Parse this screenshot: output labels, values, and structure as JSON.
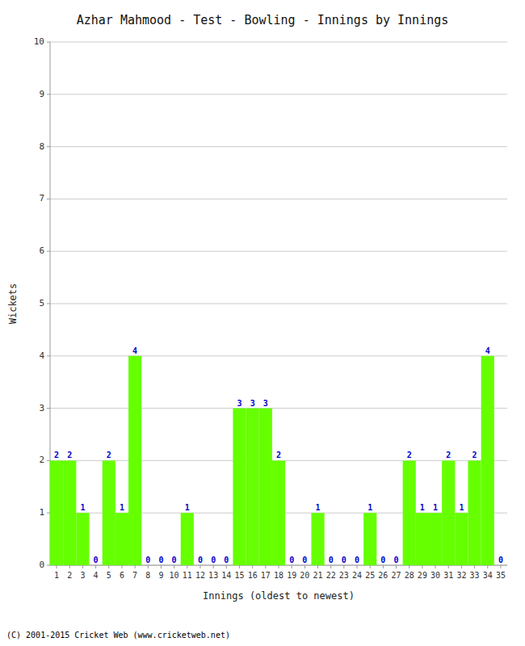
{
  "chart_data": {
    "type": "bar",
    "title": "Azhar Mahmood - Test - Bowling - Innings by Innings",
    "x_label": "Innings (oldest to newest)",
    "y_label": "Wickets",
    "footnote": "(C) 2001-2015 Cricket Web (www.cricketweb.net)",
    "categories": [
      "1",
      "2",
      "3",
      "4",
      "5",
      "6",
      "7",
      "8",
      "9",
      "10",
      "11",
      "12",
      "13",
      "14",
      "15",
      "16",
      "17",
      "18",
      "19",
      "20",
      "21",
      "22",
      "23",
      "24",
      "25",
      "26",
      "27",
      "28",
      "29",
      "30",
      "31",
      "32",
      "33",
      "34",
      "35"
    ],
    "values": [
      2,
      2,
      1,
      0,
      2,
      1,
      4,
      0,
      0,
      0,
      1,
      0,
      0,
      0,
      3,
      3,
      3,
      2,
      0,
      0,
      1,
      0,
      0,
      0,
      1,
      0,
      0,
      2,
      1,
      1,
      2,
      1,
      2,
      4,
      0
    ],
    "color": "#66ff00",
    "ylim": [
      0,
      10
    ],
    "yticks": [
      0,
      1,
      2,
      3,
      4,
      5,
      6,
      7,
      8,
      9,
      10
    ],
    "grid": true,
    "data_labels": true
  }
}
